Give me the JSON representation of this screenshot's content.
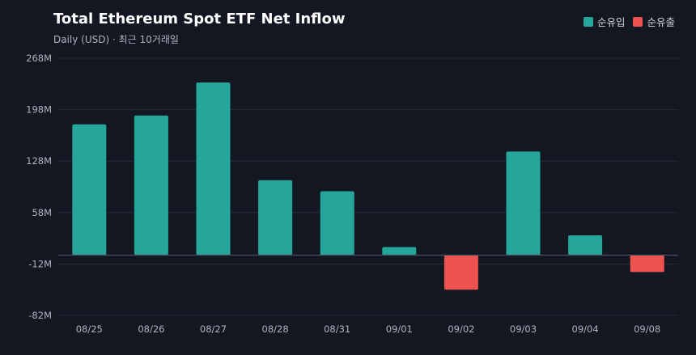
{
  "chart_data": {
    "type": "bar",
    "title": "Total Ethereum Spot ETF Net Inflow",
    "subtitle": "Daily (USD) · 최근 10거래일",
    "categories": [
      "08/25",
      "08/26",
      "08/27",
      "08/28",
      "08/31",
      "09/01",
      "09/02",
      "09/03",
      "09/04",
      "09/08"
    ],
    "series": [
      {
        "name": "순유입",
        "color": "#26a69a",
        "values": [
          178,
          190,
          235,
          102,
          87,
          11,
          null,
          141,
          27,
          null
        ]
      },
      {
        "name": "순유출",
        "color": "#ef5350",
        "values": [
          null,
          null,
          null,
          null,
          null,
          null,
          -47,
          null,
          null,
          -23
        ]
      }
    ],
    "y_ticks": [
      "268M",
      "198M",
      "128M",
      "58M",
      "-12M",
      "-82M"
    ],
    "y_tick_values": [
      268,
      198,
      128,
      58,
      -12,
      -82
    ],
    "ylim": [
      -82,
      268
    ],
    "grid": true,
    "legend_position": "top-right"
  }
}
